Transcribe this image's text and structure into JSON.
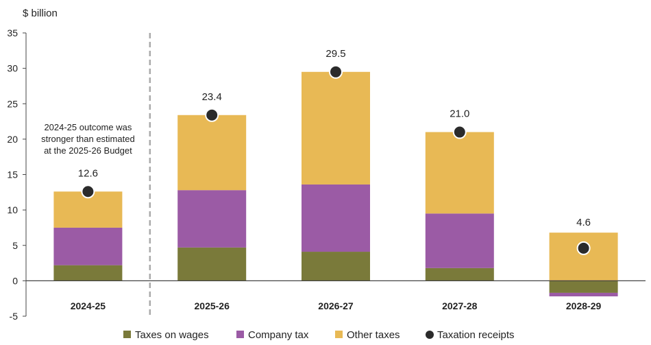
{
  "chart_data": {
    "type": "bar",
    "stacked": true,
    "title": "",
    "ylabel": "$ billion",
    "xlabel": "",
    "ylim": [
      -5,
      35
    ],
    "yticks": [
      -5,
      0,
      5,
      10,
      15,
      20,
      25,
      30,
      35
    ],
    "grid": false,
    "legend_position": "bottom",
    "categories": [
      "2024-25",
      "2025-26",
      "2026-27",
      "2027-28",
      "2028-29"
    ],
    "series": [
      {
        "name": "Taxes on wages",
        "color": "#7a7a3a",
        "values": [
          2.2,
          4.7,
          4.1,
          1.8,
          -1.7
        ]
      },
      {
        "name": "Company tax",
        "color": "#9b5ba5",
        "values": [
          5.3,
          8.1,
          9.5,
          7.7,
          -0.5
        ]
      },
      {
        "name": "Other taxes",
        "color": "#e8b955",
        "values": [
          5.1,
          10.6,
          15.9,
          11.5,
          6.8
        ]
      }
    ],
    "markers": {
      "name": "Taxation receipts",
      "color": "#2b2b2b",
      "values": [
        12.6,
        23.4,
        29.5,
        21.0,
        4.6
      ],
      "labels": [
        "12.6",
        "23.4",
        "29.5",
        "21.0",
        "4.6"
      ]
    },
    "annotation": {
      "lines": [
        "2024-25 outcome was",
        "stronger than estimated",
        "at the 2025-26 Budget"
      ]
    },
    "divider_after_category": 0
  }
}
